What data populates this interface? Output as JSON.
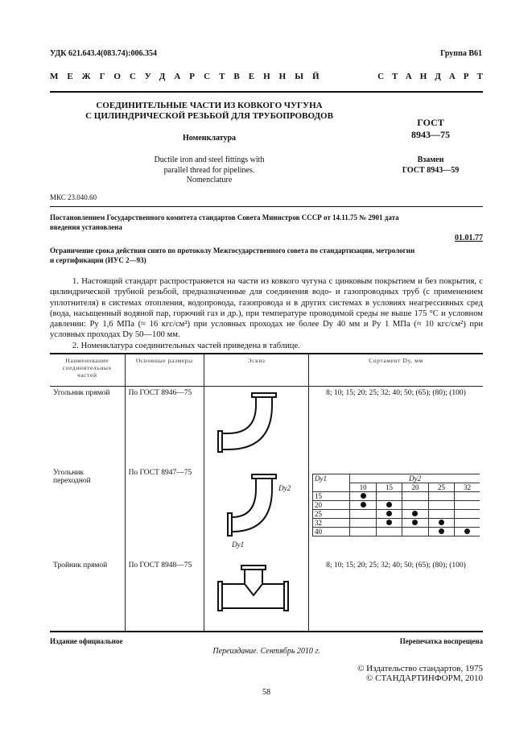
{
  "header": {
    "udk": "УДК 621.643.4(083.74):006.354",
    "group": "Группа В61",
    "banner_left": "МЕЖГОСУДАРСТВЕННЫЙ",
    "banner_right": "СТАНДАРТ"
  },
  "title": {
    "line1": "СОЕДИНИТЕЛЬНЫЕ ЧАСТИ ИЗ КОВКОГО ЧУГУНА",
    "line2": "С ЦИЛИНДРИЧЕСКОЙ РЕЗЬБОЙ ДЛЯ ТРУБОПРОВОДОВ",
    "subtitle": "Номенклатура",
    "en1": "Ductile iron and steel fittings with",
    "en2": "parallel thread for pipelines.",
    "en3": "Nomenclature"
  },
  "gost": {
    "label": "ГОСТ",
    "number": "8943—75",
    "replaces_label": "Взамен",
    "replaces": "ГОСТ 8943—59"
  },
  "mks": "МКС 23.040.60",
  "decree": {
    "text1": "Постановлением Государственного комитета стандартов Совета Министров СССР от 14.11.75 № 2901 дата",
    "text2": "введения установлена",
    "date": "01.01.77"
  },
  "limitation": {
    "text1": "Ограничение срока действия снято по протоколу Межгосударственного совета  по стандартизации, метрологии",
    "text2": "и сертификации (ИУС 2—93)"
  },
  "paragraphs": {
    "p1": "1. Настоящий стандарт распространяется на части из ковкого чугуна с цинковым покрытием и без покрытия, с цилиндрической трубной резьбой, предназначенные для соединения водо- и газопроводных труб (с применением уплотнителя) в системах отопления, водопровода, газопровода и в других системах в условиях неагрессивных сред (вода, насыщенный водяной пар, горючий газ и др.), при температуре проводимой среды не выше 175 °С и условном давлении: Pу 1,6 МПа (≈ 16 кгс/см²) при условных проходах не более Dу 40 мм и Pу 1 МПа (≈ 10 кгс/см²) при условных проходах Dу 50—100 мм.",
    "p2": "2. Номенклатура соединительных частей приведена в таблице."
  },
  "table": {
    "headers": [
      "Наименование соединительных частей",
      "Основные размеры",
      "Эскиз",
      "Сортамент Dу, мм"
    ],
    "rows": [
      {
        "name": "Угольник прямой",
        "dims": "По ГОСТ 8946—75",
        "assortment": "8; 10; 15; 20; 25; 32; 40; 50; (65); (80); (100)"
      },
      {
        "name": "Угольник переходной",
        "dims": "По ГОСТ 8947—75",
        "assortment": "",
        "sketch_labels": [
          "Dу2",
          "Dу1"
        ]
      },
      {
        "name": "Тройник прямой",
        "dims": "По ГОСТ 8948—75",
        "assortment": "8; 10; 15; 20; 25; 32; 40; 50; (65); (80); (100)"
      }
    ],
    "matrix": {
      "row_header": "Dу1",
      "col_header": "Dу2",
      "cols": [
        "10",
        "15",
        "20",
        "25",
        "32"
      ],
      "rows": [
        {
          "d": "15",
          "marks": [
            1,
            0,
            0,
            0,
            0
          ]
        },
        {
          "d": "20",
          "marks": [
            1,
            1,
            0,
            0,
            0
          ]
        },
        {
          "d": "25",
          "marks": [
            0,
            1,
            1,
            0,
            0
          ]
        },
        {
          "d": "32",
          "marks": [
            0,
            1,
            1,
            1,
            0
          ]
        },
        {
          "d": "40",
          "marks": [
            0,
            0,
            0,
            1,
            1
          ]
        }
      ]
    }
  },
  "footer": {
    "official": "Издание официальное",
    "reprint_forbidden": "Перепечатка воспрещена",
    "reissue": "Переиздание. Сентябрь 2010 г.",
    "copy1": "© Издательство стандартов, 1975",
    "copy2": "© СТАНДАРТИНФОРМ, 2010",
    "page": "58"
  }
}
